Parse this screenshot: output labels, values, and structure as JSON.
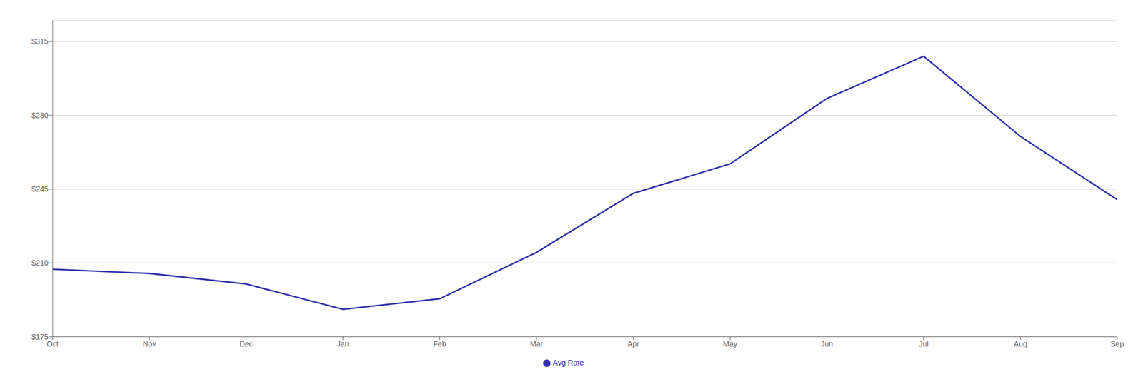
{
  "chart_data": {
    "type": "line",
    "categories": [
      "Oct",
      "Nov",
      "Dec",
      "Jan",
      "Feb",
      "Mar",
      "Apr",
      "May",
      "Jun",
      "Jul",
      "Aug",
      "Sep"
    ],
    "series": [
      {
        "name": "Avg Rate",
        "color": "#3333aa",
        "values": [
          207,
          205,
          200,
          188,
          193,
          215,
          243,
          257,
          288,
          308,
          270,
          240
        ]
      }
    ],
    "ylim": [
      175,
      325
    ],
    "yticks": [
      {
        "value": 175,
        "label": "$175"
      },
      {
        "value": 210,
        "label": "$210"
      },
      {
        "value": 245,
        "label": "$245"
      },
      {
        "value": 280,
        "label": "$280"
      },
      {
        "value": 315,
        "label": "$315"
      }
    ],
    "grid": true,
    "legend": "bottom"
  }
}
